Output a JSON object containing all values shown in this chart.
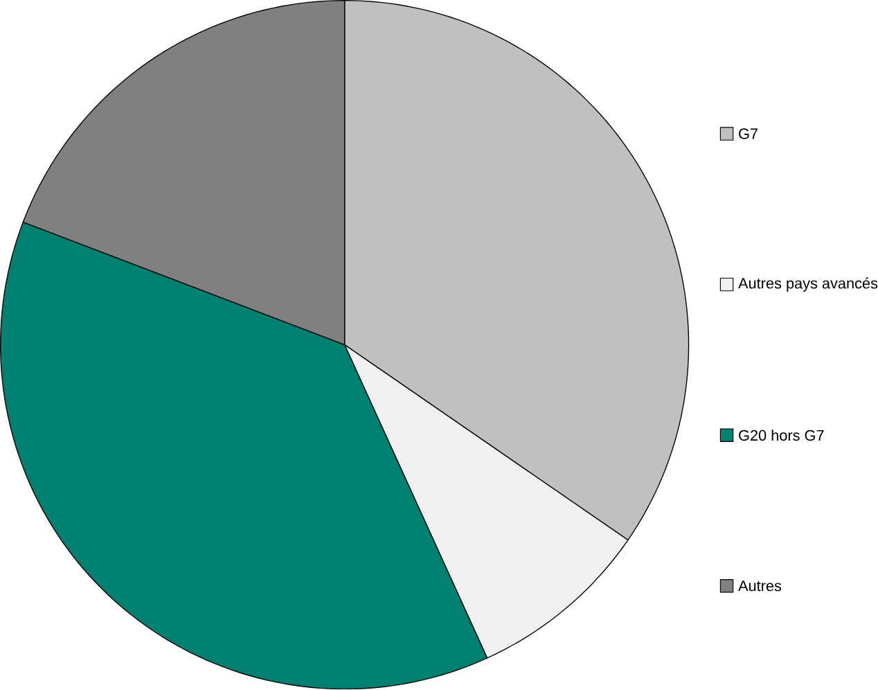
{
  "chart_data": {
    "type": "pie",
    "categories": [
      "G7",
      "Autres pays avancés",
      "G20 hors G7",
      "Autres"
    ],
    "values": [
      34.6,
      8.6,
      37.6,
      19.2
    ],
    "colors": [
      "#c0c0c0",
      "#f0f0f0",
      "#008070",
      "#808080"
    ],
    "legend": "right"
  }
}
